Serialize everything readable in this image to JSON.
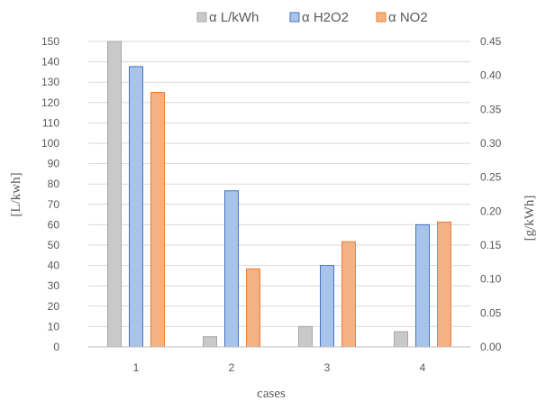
{
  "chart_data": {
    "type": "bar",
    "categories": [
      "1",
      "2",
      "3",
      "4"
    ],
    "series": [
      {
        "name": "α L/kWh",
        "axis": "left",
        "values": [
          150,
          5,
          10,
          7.5
        ],
        "color": "#c9c9c9",
        "border": "#a6a6a6"
      },
      {
        "name": "α H2O2",
        "axis": "right",
        "values": [
          0.413,
          0.23,
          0.12,
          0.18
        ],
        "color": "#a9c4eb",
        "border": "#4472c4"
      },
      {
        "name": "α NO2",
        "axis": "right",
        "values": [
          0.375,
          0.115,
          0.155,
          0.184
        ],
        "color": "#f4b183",
        "border": "#ed7d31"
      }
    ],
    "xlabel": "cases",
    "ylabel_left": "[L/kwh]",
    "ylabel_right": "[g/kWh]",
    "ylim_left": [
      0,
      150
    ],
    "ylim_right": [
      0,
      0.45
    ],
    "yticks_left": [
      "0",
      "10",
      "20",
      "30",
      "40",
      "50",
      "60",
      "70",
      "80",
      "90",
      "100",
      "110",
      "120",
      "130",
      "140",
      "150"
    ],
    "yticks_right": [
      "0.00",
      "0.05",
      "0.10",
      "0.15",
      "0.20",
      "0.25",
      "0.30",
      "0.35",
      "0.40",
      "0.45"
    ],
    "grid": true,
    "legend_position": "top"
  }
}
